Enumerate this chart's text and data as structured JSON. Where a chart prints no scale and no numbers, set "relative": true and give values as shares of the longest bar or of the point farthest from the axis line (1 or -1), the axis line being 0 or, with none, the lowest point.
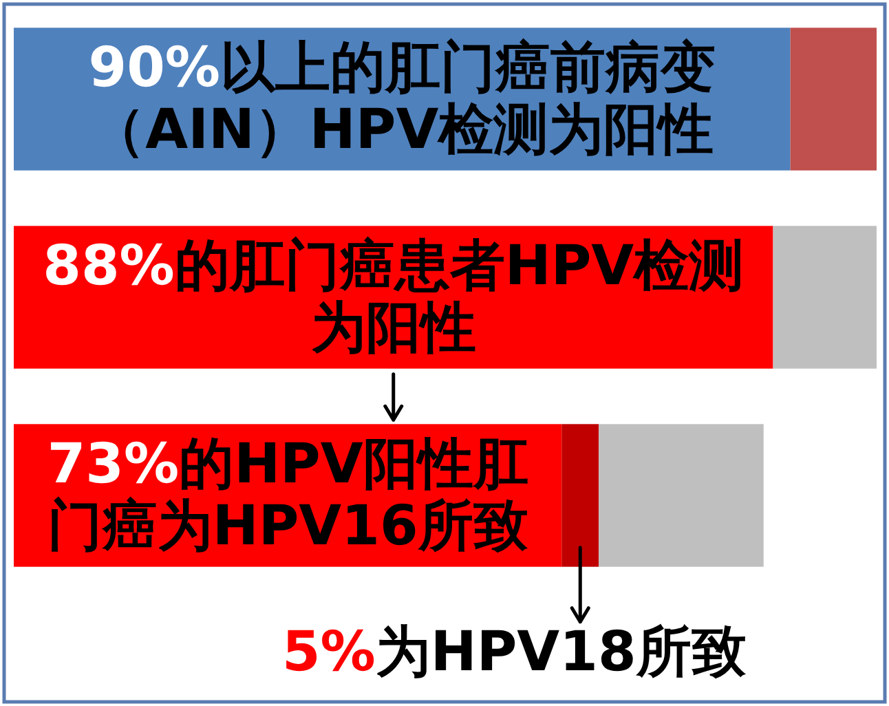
{
  "chart_data": {
    "type": "bar",
    "orientation": "horizontal",
    "stacked": true,
    "relative": true,
    "categories": [
      "90%以上的肛门癌前病变（AIN）HPV检测为阳性",
      "88%的肛门癌患者HPV检测为阳性",
      "73%的HPV阳性肛门癌为HPV16所致"
    ],
    "series": [
      {
        "colors": [
          "#4f81bd",
          "#ff0000",
          "#ff0000"
        ],
        "values": [
          0.9,
          0.88,
          0.635
        ]
      },
      {
        "colors": [
          "#c0504d",
          "#bfbfbf",
          "#c00000"
        ],
        "values": [
          0.1,
          0.12,
          0.043
        ]
      },
      {
        "color": "#bfbfbf",
        "values": [
          null,
          null,
          0.191
        ]
      }
    ],
    "annotations": [
      "5%为HPV18所致"
    ]
  }
}
